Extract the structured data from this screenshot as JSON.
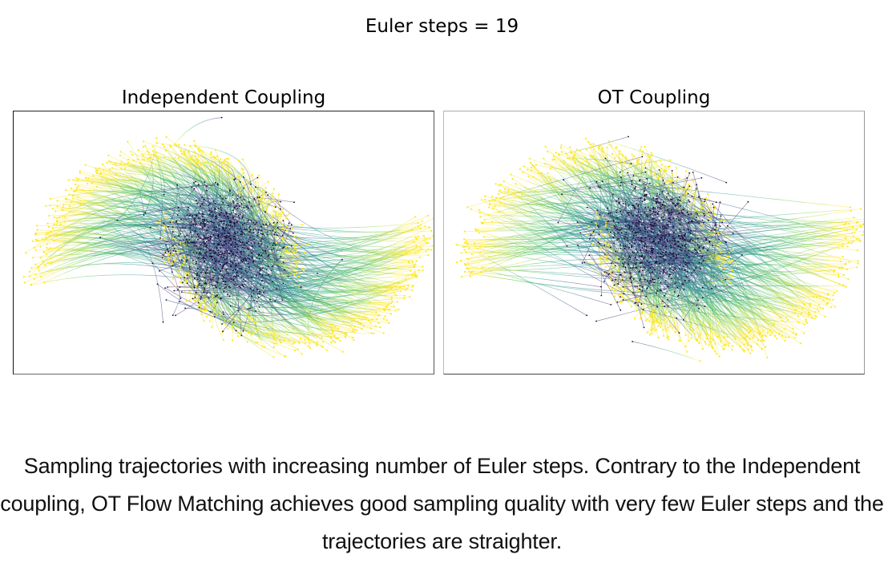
{
  "figure": {
    "suptitle": "Euler steps = 19",
    "caption": "Sampling trajectories with increasing number of Euler steps. Contrary to the Independent coupling, OT Flow Matching achieves good sampling quality with very few Euler steps and the trajectories are straighter."
  },
  "chart_data": [
    {
      "type": "scatter",
      "title": "Independent Coupling",
      "subtitle": "Euler steps = 19",
      "xlabel": "",
      "ylabel": "",
      "grid": false,
      "axes_ticks": false,
      "colormap": "viridis",
      "colormap_stops": [
        "#440154",
        "#3b528b",
        "#21918c",
        "#5ec962",
        "#fde725"
      ],
      "description": "Flow trajectories from Gaussian source (dark purple points, center) to two-moons target (yellow points). Trajectories are curved.",
      "source_center": [
        0.5,
        0.52
      ],
      "target_shape": "two-moons",
      "trajectory_style": "curved"
    },
    {
      "type": "scatter",
      "title": "OT Coupling",
      "subtitle": "Euler steps = 19",
      "xlabel": "",
      "ylabel": "",
      "grid": false,
      "axes_ticks": false,
      "colormap": "viridis",
      "colormap_stops": [
        "#440154",
        "#3b528b",
        "#21918c",
        "#5ec962",
        "#fde725"
      ],
      "description": "Flow trajectories from Gaussian source (dark purple points, center) to two-moons target (yellow points). Trajectories are straighter.",
      "source_center": [
        0.5,
        0.48
      ],
      "target_shape": "two-moons",
      "trajectory_style": "straight"
    }
  ]
}
